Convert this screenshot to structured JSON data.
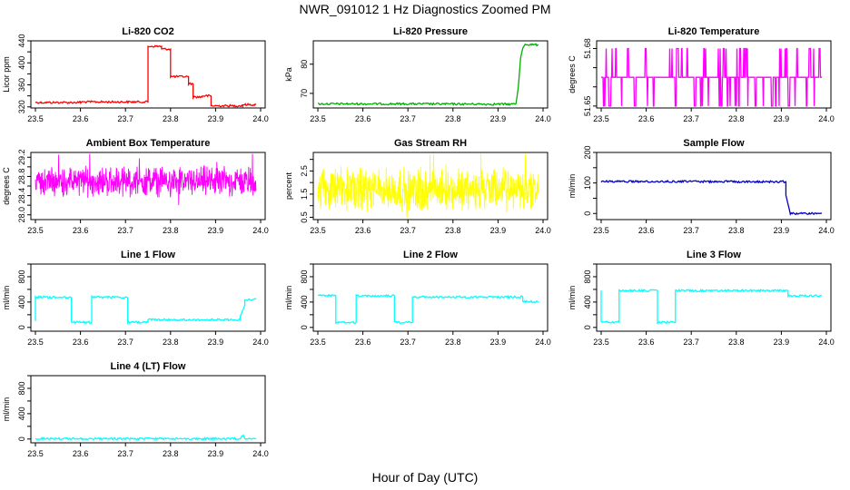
{
  "figure": {
    "title": "NWR_091012  1 Hz Diagnostics Zoomed PM",
    "xlabel": "Hour of Day (UTC)"
  },
  "chart_data": [
    {
      "type": "line",
      "title": "Li-820 CO2",
      "ylabel": "Licor ppm",
      "color": "#ff0000",
      "xlim": [
        23.5,
        24.0
      ],
      "ylim": [
        318,
        440
      ],
      "xticks": [
        "23.5",
        "23.6",
        "23.7",
        "23.8",
        "23.9",
        "24.0"
      ],
      "yticks": [
        "320",
        "340",
        "360",
        "380",
        "400",
        "420",
        "440"
      ],
      "shown_yticks": [
        "320",
        "360",
        "400",
        "440"
      ],
      "series": [
        {
          "name": "CO2",
          "x": [
            23.5,
            23.6,
            23.6,
            23.75,
            23.75,
            23.78,
            23.78,
            23.8,
            23.8,
            23.84,
            23.84,
            23.85,
            23.85,
            23.87,
            23.87,
            23.89,
            23.89,
            23.96,
            23.96,
            23.99
          ],
          "y": [
            328,
            328,
            329,
            329,
            430,
            430,
            425,
            425,
            375,
            375,
            362,
            362,
            338,
            338,
            340,
            340,
            322,
            322,
            324,
            324
          ]
        }
      ]
    },
    {
      "type": "line",
      "title": "Li-820 Pressure",
      "ylabel": "kPa",
      "color": "#00b000",
      "xlim": [
        23.5,
        24.0
      ],
      "ylim": [
        65,
        88
      ],
      "xticks": [
        "23.5",
        "23.6",
        "23.7",
        "23.8",
        "23.9",
        "24.0"
      ],
      "yticks": [
        "70",
        "80"
      ],
      "series": [
        {
          "name": "Pressure",
          "x": [
            23.5,
            23.7,
            23.93,
            23.94,
            23.945,
            23.95,
            23.955,
            23.96,
            23.99
          ],
          "y": [
            66.4,
            66.4,
            66.3,
            66.5,
            72,
            82,
            85.5,
            86.8,
            86.6
          ]
        }
      ]
    },
    {
      "type": "line",
      "title": "Li-820 Temperature",
      "ylabel": "degrees C",
      "color": "#ff00ff",
      "xlim": [
        23.5,
        24.0
      ],
      "ylim": [
        51.649,
        51.684
      ],
      "xticks": [
        "23.5",
        "23.6",
        "23.7",
        "23.8",
        "23.9",
        "24.0"
      ],
      "yticks": [
        "51.65",
        "51.66",
        "51.67",
        "51.68"
      ],
      "shown_yticks": [
        "51.65",
        "51.68"
      ],
      "series": [
        {
          "name": "Temperature",
          "levels": [
            51.65,
            51.665,
            51.68
          ],
          "x_range": [
            23.5,
            23.99
          ],
          "dominant_level": 51.665
        }
      ]
    },
    {
      "type": "line",
      "title": "Ambient Box Temperature",
      "ylabel": "degrees C",
      "color": "#ff00ff",
      "xlim": [
        23.5,
        24.0
      ],
      "ylim": [
        27.9,
        29.3
      ],
      "xticks": [
        "23.5",
        "23.6",
        "23.7",
        "23.8",
        "23.9",
        "24.0"
      ],
      "yticks": [
        "28.0",
        "28.2",
        "28.4",
        "28.6",
        "28.8",
        "29.0",
        "29.2"
      ],
      "shown_yticks": [
        "28.0",
        "28.4",
        "28.8",
        "29.2"
      ],
      "series": [
        {
          "name": "Box Temperature",
          "mean": 28.7,
          "band": [
            28.35,
            29.15
          ],
          "x_range": [
            23.5,
            23.99
          ]
        }
      ]
    },
    {
      "type": "line",
      "title": "Gas Stream RH",
      "ylabel": "percent",
      "color": "#ffff00",
      "xlim": [
        23.5,
        24.0
      ],
      "ylim": [
        0.4,
        3.3
      ],
      "xticks": [
        "23.5",
        "23.6",
        "23.7",
        "23.8",
        "23.9",
        "24.0"
      ],
      "yticks": [
        "0.5",
        "1.0",
        "1.5",
        "2.0",
        "2.5",
        "3.0"
      ],
      "shown_yticks": [
        "0.5",
        "1.5",
        "2.5"
      ],
      "series": [
        {
          "name": "RH",
          "mean": 1.7,
          "band": [
            0.7,
            3.1
          ],
          "x_range": [
            23.5,
            23.99
          ]
        }
      ]
    },
    {
      "type": "line",
      "title": "Sample Flow",
      "ylabel": "ml/min",
      "color": "#0000cc",
      "xlim": [
        23.5,
        24.0
      ],
      "ylim": [
        -20,
        200
      ],
      "xticks": [
        "23.5",
        "23.6",
        "23.7",
        "23.8",
        "23.9",
        "24.0"
      ],
      "yticks": [
        "0",
        "50",
        "100",
        "150",
        "200"
      ],
      "shown_yticks": [
        "0",
        "100",
        "200"
      ],
      "series": [
        {
          "name": "Sample Flow",
          "x": [
            23.5,
            23.91,
            23.91,
            23.92,
            23.99
          ],
          "y": [
            105,
            104,
            60,
            0,
            0
          ]
        }
      ]
    },
    {
      "type": "line",
      "title": "Line 1 Flow",
      "ylabel": "ml/min",
      "color": "#00ffff",
      "xlim": [
        23.5,
        24.0
      ],
      "ylim": [
        -60,
        1000
      ],
      "xticks": [
        "23.5",
        "23.6",
        "23.7",
        "23.8",
        "23.9",
        "24.0"
      ],
      "yticks": [
        "0",
        "200",
        "400",
        "600",
        "800",
        "1000"
      ],
      "shown_yticks": [
        "0",
        "400",
        "800"
      ],
      "series": [
        {
          "name": "Line 1 Flow",
          "x": [
            23.5,
            23.5,
            23.58,
            23.58,
            23.625,
            23.625,
            23.705,
            23.705,
            23.75,
            23.75,
            23.955,
            23.955,
            23.965,
            23.965,
            23.99
          ],
          "y": [
            100,
            480,
            470,
            80,
            80,
            480,
            470,
            80,
            80,
            120,
            120,
            180,
            350,
            430,
            440
          ]
        }
      ]
    },
    {
      "type": "line",
      "title": "Line 2 Flow",
      "ylabel": "ml/min",
      "color": "#00ffff",
      "xlim": [
        23.5,
        24.0
      ],
      "ylim": [
        -60,
        1000
      ],
      "xticks": [
        "23.5",
        "23.6",
        "23.7",
        "23.8",
        "23.9",
        "24.0"
      ],
      "yticks": [
        "0",
        "200",
        "400",
        "600",
        "800",
        "1000"
      ],
      "shown_yticks": [
        "0",
        "400",
        "800"
      ],
      "series": [
        {
          "name": "Line 2 Flow",
          "x": [
            23.5,
            23.54,
            23.54,
            23.585,
            23.585,
            23.67,
            23.67,
            23.71,
            23.71,
            23.955,
            23.955,
            23.99
          ],
          "y": [
            500,
            500,
            80,
            80,
            500,
            500,
            80,
            80,
            480,
            480,
            410,
            400
          ]
        }
      ]
    },
    {
      "type": "line",
      "title": "Line 3 Flow",
      "ylabel": "ml/min",
      "color": "#00ffff",
      "xlim": [
        23.5,
        24.0
      ],
      "ylim": [
        -60,
        1000
      ],
      "xticks": [
        "23.5",
        "23.6",
        "23.7",
        "23.8",
        "23.9",
        "24.0"
      ],
      "yticks": [
        "0",
        "200",
        "400",
        "600",
        "800",
        "1000"
      ],
      "shown_yticks": [
        "0",
        "400",
        "800"
      ],
      "series": [
        {
          "name": "Line 3 Flow",
          "x": [
            23.5,
            23.5,
            23.505,
            23.54,
            23.54,
            23.625,
            23.625,
            23.665,
            23.665,
            23.915,
            23.915,
            23.99
          ],
          "y": [
            580,
            80,
            80,
            80,
            580,
            580,
            80,
            80,
            580,
            580,
            500,
            500
          ]
        }
      ]
    },
    {
      "type": "line",
      "title": "Line 4 (LT) Flow",
      "ylabel": "ml/min",
      "color": "#00ffff",
      "xlim": [
        23.5,
        24.0
      ],
      "ylim": [
        -60,
        1000
      ],
      "xticks": [
        "23.5",
        "23.6",
        "23.7",
        "23.8",
        "23.9",
        "24.0"
      ],
      "yticks": [
        "0",
        "200",
        "400",
        "600",
        "800",
        "1000"
      ],
      "shown_yticks": [
        "0",
        "400",
        "800"
      ],
      "series": [
        {
          "name": "Line 4 Flow",
          "x": [
            23.5,
            23.955,
            23.958,
            23.962,
            23.965,
            23.99
          ],
          "y": [
            5,
            5,
            60,
            60,
            5,
            5
          ]
        }
      ]
    }
  ]
}
